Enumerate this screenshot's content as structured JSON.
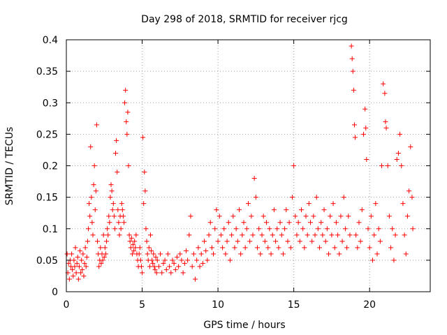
{
  "chart_data": {
    "type": "scatter",
    "title": "Day 298 of 2018, SRMTID for receiver rjcg",
    "xlabel": "GPS time / hours",
    "ylabel": "SRMTID / TECUs",
    "xlim": [
      0,
      24
    ],
    "ylim": [
      0,
      0.4
    ],
    "xticks": [
      0,
      5,
      10,
      15,
      20
    ],
    "xtick_labels": [
      "0",
      "5",
      "10",
      "15",
      "20"
    ],
    "yticks": [
      0,
      0.05,
      0.1,
      0.15,
      0.2,
      0.25,
      0.3,
      0.35,
      0.4
    ],
    "ytick_labels": [
      "0",
      "0.05",
      "0.1",
      "0.15",
      "0.2",
      "0.25",
      "0.3",
      "0.35",
      "0.4"
    ],
    "grid": true,
    "marker": "+",
    "color": "#ff0000",
    "series": [
      {
        "name": "SRMTID",
        "points": [
          [
            0.05,
            0.06
          ],
          [
            0.1,
            0.03
          ],
          [
            0.15,
            0.045
          ],
          [
            0.2,
            0.02
          ],
          [
            0.25,
            0.05
          ],
          [
            0.3,
            0.04
          ],
          [
            0.35,
            0.06
          ],
          [
            0.4,
            0.035
          ],
          [
            0.45,
            0.025
          ],
          [
            0.5,
            0.05
          ],
          [
            0.55,
            0.04
          ],
          [
            0.6,
            0.07
          ],
          [
            0.65,
            0.03
          ],
          [
            0.7,
            0.045
          ],
          [
            0.75,
            0.055
          ],
          [
            0.8,
            0.02
          ],
          [
            0.85,
            0.04
          ],
          [
            0.9,
            0.065
          ],
          [
            0.95,
            0.03
          ],
          [
            1.0,
            0.05
          ],
          [
            1.05,
            0.035
          ],
          [
            1.1,
            0.06
          ],
          [
            1.15,
            0.025
          ],
          [
            1.2,
            0.045
          ],
          [
            1.25,
            0.07
          ],
          [
            1.3,
            0.04
          ],
          [
            1.35,
            0.055
          ],
          [
            1.4,
            0.08
          ],
          [
            1.45,
            0.1
          ],
          [
            1.5,
            0.14
          ],
          [
            1.55,
            0.12
          ],
          [
            1.6,
            0.23
          ],
          [
            1.65,
            0.15
          ],
          [
            1.7,
            0.11
          ],
          [
            1.75,
            0.09
          ],
          [
            1.8,
            0.17
          ],
          [
            1.85,
            0.2
          ],
          [
            1.9,
            0.13
          ],
          [
            1.95,
            0.16
          ],
          [
            2.0,
            0.265
          ],
          [
            2.05,
            0.08
          ],
          [
            2.1,
            0.06
          ],
          [
            2.15,
            0.04
          ],
          [
            2.2,
            0.05
          ],
          [
            2.25,
            0.07
          ],
          [
            2.3,
            0.045
          ],
          [
            2.35,
            0.06
          ],
          [
            2.4,
            0.05
          ],
          [
            2.45,
            0.09
          ],
          [
            2.5,
            0.055
          ],
          [
            2.55,
            0.07
          ],
          [
            2.6,
            0.06
          ],
          [
            2.65,
            0.08
          ],
          [
            2.7,
            0.1
          ],
          [
            2.75,
            0.09
          ],
          [
            2.8,
            0.12
          ],
          [
            2.85,
            0.11
          ],
          [
            2.9,
            0.15
          ],
          [
            2.95,
            0.17
          ],
          [
            3.0,
            0.16
          ],
          [
            3.05,
            0.13
          ],
          [
            3.1,
            0.14
          ],
          [
            3.15,
            0.12
          ],
          [
            3.2,
            0.1
          ],
          [
            3.25,
            0.22
          ],
          [
            3.3,
            0.24
          ],
          [
            3.35,
            0.19
          ],
          [
            3.4,
            0.13
          ],
          [
            3.45,
            0.11
          ],
          [
            3.5,
            0.09
          ],
          [
            3.55,
            0.12
          ],
          [
            3.6,
            0.1
          ],
          [
            3.65,
            0.14
          ],
          [
            3.7,
            0.13
          ],
          [
            3.75,
            0.12
          ],
          [
            3.8,
            0.11
          ],
          [
            3.85,
            0.3
          ],
          [
            3.9,
            0.32
          ],
          [
            3.95,
            0.27
          ],
          [
            4.0,
            0.25
          ],
          [
            4.05,
            0.285
          ],
          [
            4.1,
            0.2
          ],
          [
            4.15,
            0.09
          ],
          [
            4.2,
            0.08
          ],
          [
            4.25,
            0.07
          ],
          [
            4.3,
            0.085
          ],
          [
            4.35,
            0.06
          ],
          [
            4.4,
            0.075
          ],
          [
            4.45,
            0.065
          ],
          [
            4.5,
            0.08
          ],
          [
            4.55,
            0.07
          ],
          [
            4.6,
            0.09
          ],
          [
            4.65,
            0.06
          ],
          [
            4.7,
            0.05
          ],
          [
            4.75,
            0.04
          ],
          [
            4.8,
            0.06
          ],
          [
            4.85,
            0.07
          ],
          [
            4.9,
            0.05
          ],
          [
            4.95,
            0.04
          ],
          [
            5.0,
            0.03
          ],
          [
            5.05,
            0.245
          ],
          [
            5.1,
            0.14
          ],
          [
            5.15,
            0.19
          ],
          [
            5.2,
            0.16
          ],
          [
            5.25,
            0.1
          ],
          [
            5.3,
            0.08
          ],
          [
            5.35,
            0.06
          ],
          [
            5.4,
            0.05
          ],
          [
            5.45,
            0.07
          ],
          [
            5.5,
            0.04
          ],
          [
            5.55,
            0.09
          ],
          [
            5.6,
            0.065
          ],
          [
            5.65,
            0.05
          ],
          [
            5.7,
            0.045
          ],
          [
            5.75,
            0.06
          ],
          [
            5.8,
            0.04
          ],
          [
            5.85,
            0.035
          ],
          [
            5.9,
            0.055
          ],
          [
            5.95,
            0.03
          ],
          [
            6.0,
            0.05
          ],
          [
            6.1,
            0.04
          ],
          [
            6.2,
            0.06
          ],
          [
            6.3,
            0.03
          ],
          [
            6.4,
            0.045
          ],
          [
            6.5,
            0.05
          ],
          [
            6.6,
            0.035
          ],
          [
            6.7,
            0.06
          ],
          [
            6.8,
            0.04
          ],
          [
            6.9,
            0.03
          ],
          [
            7.0,
            0.05
          ],
          [
            7.1,
            0.045
          ],
          [
            7.2,
            0.035
          ],
          [
            7.3,
            0.055
          ],
          [
            7.4,
            0.04
          ],
          [
            7.5,
            0.06
          ],
          [
            7.6,
            0.05
          ],
          [
            7.7,
            0.03
          ],
          [
            7.8,
            0.045
          ],
          [
            7.9,
            0.065
          ],
          [
            8.0,
            0.05
          ],
          [
            8.1,
            0.09
          ],
          [
            8.2,
            0.12
          ],
          [
            8.3,
            0.04
          ],
          [
            8.4,
            0.06
          ],
          [
            8.5,
            0.02
          ],
          [
            8.6,
            0.05
          ],
          [
            8.7,
            0.07
          ],
          [
            8.8,
            0.04
          ],
          [
            8.9,
            0.06
          ],
          [
            9.0,
            0.045
          ],
          [
            9.1,
            0.08
          ],
          [
            9.2,
            0.065
          ],
          [
            9.3,
            0.05
          ],
          [
            9.4,
            0.09
          ],
          [
            9.5,
            0.11
          ],
          [
            9.6,
            0.07
          ],
          [
            9.7,
            0.06
          ],
          [
            9.8,
            0.1
          ],
          [
            9.9,
            0.13
          ],
          [
            10.0,
            0.08
          ],
          [
            10.1,
            0.12
          ],
          [
            10.2,
            0.09
          ],
          [
            10.3,
            0.07
          ],
          [
            10.4,
            0.1
          ],
          [
            10.5,
            0.06
          ],
          [
            10.6,
            0.08
          ],
          [
            10.7,
            0.11
          ],
          [
            10.8,
            0.05
          ],
          [
            10.9,
            0.09
          ],
          [
            11.0,
            0.12
          ],
          [
            11.1,
            0.07
          ],
          [
            11.2,
            0.1
          ],
          [
            11.3,
            0.08
          ],
          [
            11.4,
            0.13
          ],
          [
            11.5,
            0.06
          ],
          [
            11.6,
            0.09
          ],
          [
            11.7,
            0.11
          ],
          [
            11.8,
            0.07
          ],
          [
            11.9,
            0.1
          ],
          [
            12.0,
            0.14
          ],
          [
            12.1,
            0.08
          ],
          [
            12.2,
            0.12
          ],
          [
            12.3,
            0.09
          ],
          [
            12.4,
            0.18
          ],
          [
            12.5,
            0.15
          ],
          [
            12.6,
            0.07
          ],
          [
            12.7,
            0.1
          ],
          [
            12.8,
            0.06
          ],
          [
            12.9,
            0.09
          ],
          [
            13.0,
            0.12
          ],
          [
            13.1,
            0.08
          ],
          [
            13.2,
            0.11
          ],
          [
            13.3,
            0.07
          ],
          [
            13.4,
            0.1
          ],
          [
            13.5,
            0.06
          ],
          [
            13.6,
            0.09
          ],
          [
            13.7,
            0.13
          ],
          [
            13.8,
            0.08
          ],
          [
            13.9,
            0.1
          ],
          [
            14.0,
            0.07
          ],
          [
            14.1,
            0.11
          ],
          [
            14.2,
            0.09
          ],
          [
            14.3,
            0.06
          ],
          [
            14.4,
            0.1
          ],
          [
            14.5,
            0.13
          ],
          [
            14.6,
            0.08
          ],
          [
            14.7,
            0.11
          ],
          [
            14.8,
            0.07
          ],
          [
            14.9,
            0.15
          ],
          [
            15.0,
            0.2
          ],
          [
            15.1,
            0.12
          ],
          [
            15.2,
            0.09
          ],
          [
            15.3,
            0.11
          ],
          [
            15.4,
            0.08
          ],
          [
            15.5,
            0.13
          ],
          [
            15.6,
            0.1
          ],
          [
            15.7,
            0.07
          ],
          [
            15.8,
            0.12
          ],
          [
            15.9,
            0.09
          ],
          [
            16.0,
            0.14
          ],
          [
            16.1,
            0.11
          ],
          [
            16.2,
            0.08
          ],
          [
            16.3,
            0.12
          ],
          [
            16.4,
            0.09
          ],
          [
            16.5,
            0.15
          ],
          [
            16.6,
            0.1
          ],
          [
            16.7,
            0.07
          ],
          [
            16.8,
            0.11
          ],
          [
            16.9,
            0.09
          ],
          [
            17.0,
            0.13
          ],
          [
            17.1,
            0.08
          ],
          [
            17.2,
            0.1
          ],
          [
            17.3,
            0.06
          ],
          [
            17.4,
            0.12
          ],
          [
            17.5,
            0.09
          ],
          [
            17.6,
            0.14
          ],
          [
            17.7,
            0.07
          ],
          [
            17.8,
            0.11
          ],
          [
            17.9,
            0.09
          ],
          [
            18.0,
            0.06
          ],
          [
            18.1,
            0.12
          ],
          [
            18.2,
            0.08
          ],
          [
            18.3,
            0.15
          ],
          [
            18.4,
            0.1
          ],
          [
            18.5,
            0.07
          ],
          [
            18.6,
            0.12
          ],
          [
            18.7,
            0.09
          ],
          [
            18.8,
            0.39
          ],
          [
            18.85,
            0.37
          ],
          [
            18.9,
            0.35
          ],
          [
            18.95,
            0.32
          ],
          [
            19.0,
            0.265
          ],
          [
            19.05,
            0.245
          ],
          [
            19.1,
            0.09
          ],
          [
            19.2,
            0.07
          ],
          [
            19.3,
            0.11
          ],
          [
            19.4,
            0.08
          ],
          [
            19.5,
            0.13
          ],
          [
            19.6,
            0.25
          ],
          [
            19.7,
            0.29
          ],
          [
            19.75,
            0.26
          ],
          [
            19.8,
            0.21
          ],
          [
            19.9,
            0.1
          ],
          [
            20.0,
            0.07
          ],
          [
            20.1,
            0.12
          ],
          [
            20.2,
            0.05
          ],
          [
            20.3,
            0.09
          ],
          [
            20.4,
            0.14
          ],
          [
            20.5,
            0.06
          ],
          [
            20.6,
            0.1
          ],
          [
            20.7,
            0.08
          ],
          [
            20.8,
            0.2
          ],
          [
            20.9,
            0.33
          ],
          [
            21.0,
            0.315
          ],
          [
            21.05,
            0.27
          ],
          [
            21.1,
            0.26
          ],
          [
            21.2,
            0.2
          ],
          [
            21.3,
            0.12
          ],
          [
            21.4,
            0.07
          ],
          [
            21.5,
            0.1
          ],
          [
            21.6,
            0.05
          ],
          [
            21.7,
            0.09
          ],
          [
            21.8,
            0.21
          ],
          [
            21.9,
            0.22
          ],
          [
            22.0,
            0.25
          ],
          [
            22.1,
            0.2
          ],
          [
            22.2,
            0.14
          ],
          [
            22.3,
            0.09
          ],
          [
            22.4,
            0.06
          ],
          [
            22.5,
            0.12
          ],
          [
            22.6,
            0.16
          ],
          [
            22.7,
            0.23
          ],
          [
            22.8,
            0.15
          ],
          [
            22.85,
            0.1
          ]
        ]
      }
    ]
  }
}
